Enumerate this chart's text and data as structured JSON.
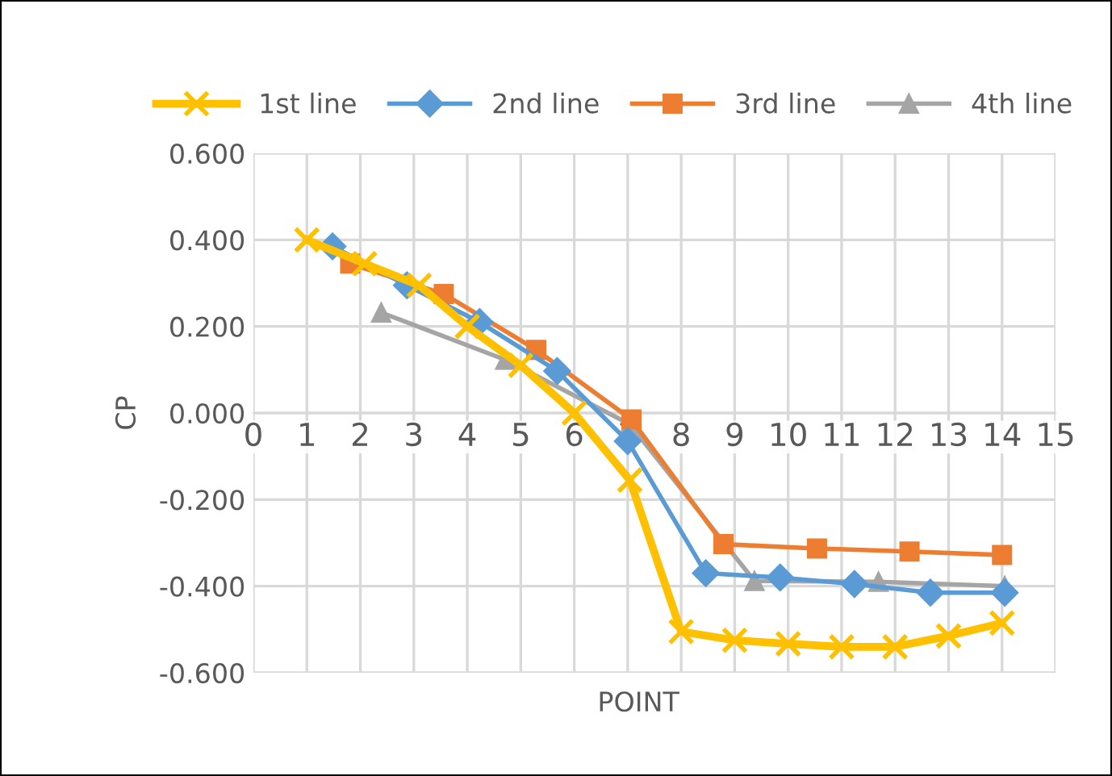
{
  "chart_data": {
    "type": "line",
    "xlabel": "POINT",
    "ylabel": "CP",
    "legend": "top",
    "grid": true,
    "xlim": [
      0,
      15
    ],
    "xticks": [
      0,
      1,
      2,
      3,
      4,
      5,
      6,
      7,
      8,
      9,
      10,
      11,
      12,
      13,
      14,
      15
    ],
    "ylim": [
      -0.6,
      0.6
    ],
    "yticks": [
      {
        "value": -0.6,
        "label": "-0.600"
      },
      {
        "value": -0.4,
        "label": "-0.400"
      },
      {
        "value": -0.2,
        "label": "-0.200"
      },
      {
        "value": 0,
        "label": "0.000"
      },
      {
        "value": 0.2,
        "label": "0.200"
      },
      {
        "value": 0.4,
        "label": "0.400"
      },
      {
        "value": 0.6,
        "label": "0.600"
      }
    ],
    "series": [
      {
        "name": "1st line",
        "color": "#ffc000",
        "marker": "cross",
        "x": [
          1,
          2.08,
          3.1,
          4.0,
          5.0,
          6.0,
          7.04,
          8.0,
          9.0,
          10.0,
          11.0,
          12.0,
          13.0,
          14.0
        ],
        "values": [
          0.4,
          0.345,
          0.295,
          0.2,
          0.11,
          0.0,
          -0.155,
          -0.505,
          -0.525,
          -0.533,
          -0.54,
          -0.54,
          -0.515,
          -0.485
        ]
      },
      {
        "name": "2nd line",
        "color": "#5b9bd5",
        "marker": "diamond",
        "x": [
          1.48,
          2.87,
          4.23,
          5.68,
          7.0,
          8.46,
          9.85,
          11.24,
          12.66,
          14.05
        ],
        "values": [
          0.385,
          0.295,
          0.21,
          0.097,
          -0.065,
          -0.37,
          -0.38,
          -0.395,
          -0.415,
          -0.415
        ]
      },
      {
        "name": "3rd line",
        "color": "#ed7d31",
        "marker": "square",
        "x": [
          1.81,
          3.56,
          5.29,
          7.07,
          8.79,
          10.54,
          12.27,
          14.0
        ],
        "values": [
          0.345,
          0.275,
          0.146,
          -0.015,
          -0.303,
          -0.313,
          -0.32,
          -0.328
        ]
      },
      {
        "name": "4th line",
        "color": "#a5a5a5",
        "marker": "triangle",
        "x": [
          2.39,
          4.71,
          7.04,
          9.37,
          11.69,
          14.05
        ],
        "values": [
          0.232,
          0.123,
          -0.026,
          -0.388,
          -0.39,
          -0.4
        ]
      }
    ]
  }
}
